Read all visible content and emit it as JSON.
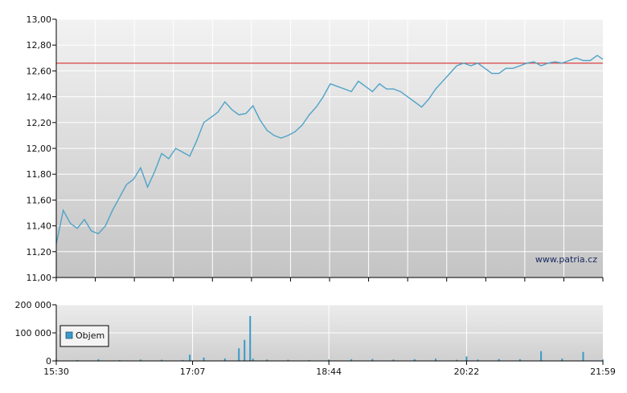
{
  "watermark": "www.patria.cz",
  "colors": {
    "price_line": "#4fa3c8",
    "reference_line": "#d94040",
    "volume_bar": "#3a9ac8",
    "plot_bg_top": "#f2f2f2",
    "plot_bg_bottom": "#c4c4c4",
    "grid": "#ffffff",
    "axis": "#000000"
  },
  "chart_data": [
    {
      "type": "line",
      "name": "price",
      "ylim": [
        11.0,
        13.0
      ],
      "yticks": [
        "11,00",
        "11,20",
        "11,40",
        "11,60",
        "11,80",
        "12,00",
        "12,20",
        "12,40",
        "12,60",
        "12,80",
        "13,00"
      ],
      "ytick_values": [
        11.0,
        11.2,
        11.4,
        11.6,
        11.8,
        12.0,
        12.2,
        12.4,
        12.6,
        12.8,
        13.0
      ],
      "reference_line": 12.66,
      "xlim": [
        "15:30",
        "21:59"
      ],
      "x": [
        "15:30",
        "15:35",
        "15:40",
        "15:45",
        "15:50",
        "15:55",
        "16:00",
        "16:05",
        "16:10",
        "16:15",
        "16:20",
        "16:25",
        "16:30",
        "16:35",
        "16:40",
        "16:45",
        "16:50",
        "16:55",
        "17:00",
        "17:05",
        "17:10",
        "17:15",
        "17:20",
        "17:25",
        "17:30",
        "17:35",
        "17:40",
        "17:45",
        "17:50",
        "17:55",
        "18:00",
        "18:05",
        "18:10",
        "18:15",
        "18:20",
        "18:25",
        "18:30",
        "18:35",
        "18:40",
        "18:45",
        "18:50",
        "18:55",
        "19:00",
        "19:05",
        "19:10",
        "19:15",
        "19:20",
        "19:25",
        "19:30",
        "19:35",
        "19:40",
        "19:45",
        "19:50",
        "19:55",
        "20:00",
        "20:05",
        "20:10",
        "20:15",
        "20:20",
        "20:25",
        "20:30",
        "20:35",
        "20:40",
        "20:45",
        "20:50",
        "20:55",
        "21:00",
        "21:05",
        "21:10",
        "21:15",
        "21:20",
        "21:25",
        "21:30",
        "21:35",
        "21:40",
        "21:45",
        "21:50",
        "21:55",
        "21:59"
      ],
      "y": [
        11.26,
        11.52,
        11.42,
        11.38,
        11.45,
        11.36,
        11.34,
        11.4,
        11.52,
        11.62,
        11.72,
        11.76,
        11.85,
        11.7,
        11.82,
        11.96,
        11.92,
        12.0,
        11.97,
        11.94,
        12.06,
        12.2,
        12.24,
        12.28,
        12.36,
        12.3,
        12.26,
        12.27,
        12.33,
        12.22,
        12.14,
        12.1,
        12.08,
        12.1,
        12.13,
        12.18,
        12.26,
        12.32,
        12.4,
        12.5,
        12.48,
        12.46,
        12.44,
        12.52,
        12.48,
        12.44,
        12.5,
        12.46,
        12.46,
        12.44,
        12.4,
        12.36,
        12.32,
        12.38,
        12.46,
        12.52,
        12.58,
        12.64,
        12.66,
        12.64,
        12.66,
        12.62,
        12.58,
        12.58,
        12.62,
        12.62,
        12.64,
        12.66,
        12.67,
        12.64,
        12.66,
        12.67,
        12.66,
        12.68,
        12.7,
        12.68,
        12.68,
        12.72,
        12.69
      ]
    },
    {
      "type": "bar",
      "name": "volume",
      "legend": "Objem",
      "ylim": [
        0,
        200000
      ],
      "yticks": [
        "0",
        "100 000",
        "200 000"
      ],
      "ytick_values": [
        0,
        100000,
        200000
      ],
      "xticks": [
        "15:30",
        "17:07",
        "18:44",
        "20:22",
        "21:59"
      ],
      "x": [
        "15:30",
        "15:45",
        "16:00",
        "16:15",
        "16:30",
        "16:45",
        "17:00",
        "17:05",
        "17:15",
        "17:30",
        "17:40",
        "17:44",
        "17:48",
        "17:50",
        "18:00",
        "18:15",
        "18:30",
        "18:44",
        "19:00",
        "19:15",
        "19:30",
        "19:45",
        "20:00",
        "20:15",
        "20:22",
        "20:30",
        "20:45",
        "21:00",
        "21:15",
        "21:30",
        "21:45",
        "21:59"
      ],
      "values": [
        4000,
        3000,
        6000,
        3000,
        5000,
        4000,
        3000,
        22000,
        12000,
        9000,
        45000,
        75000,
        160000,
        8000,
        5000,
        4000,
        3000,
        5000,
        6000,
        7000,
        5000,
        6000,
        8000,
        4000,
        16000,
        5000,
        7000,
        6000,
        35000,
        8000,
        32000,
        5000
      ]
    }
  ]
}
